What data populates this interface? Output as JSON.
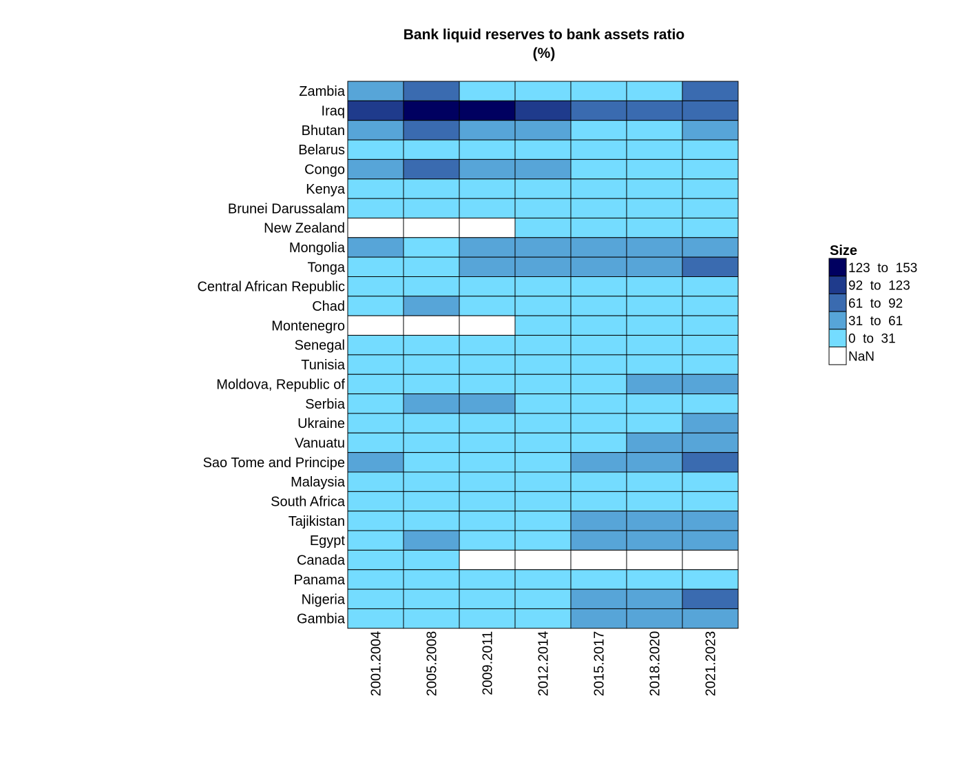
{
  "chart_data": {
    "type": "heatmap",
    "title": "Bank liquid reserves to bank assets ratio",
    "subtitle": "(%)",
    "x_categories": [
      "2001.2004",
      "2005.2008",
      "2009.2011",
      "2012.2014",
      "2015.2017",
      "2018.2020",
      "2021.2023"
    ],
    "y_categories": [
      "Zambia",
      "Iraq",
      "Bhutan",
      "Belarus",
      "Congo",
      "Kenya",
      "Brunei Darussalam",
      "New Zealand",
      "Mongolia",
      "Tonga",
      "Central African Republic",
      "Chad",
      "Montenegro",
      "Senegal",
      "Tunisia",
      "Moldova, Republic of",
      "Serbia",
      "Ukraine",
      "Vanuatu",
      "Sao Tome and Principe",
      "Malaysia",
      "South Africa",
      "Tajikistan",
      "Egypt",
      "Canada",
      "Panama",
      "Nigeria",
      "Gambia"
    ],
    "bins": [
      {
        "label": "123  to  153",
        "color": "#000060"
      },
      {
        "label": "92  to  123",
        "color": "#1f3b8c"
      },
      {
        "label": "61  to  92",
        "color": "#3a6bb0"
      },
      {
        "label": "31  to  61",
        "color": "#57a5d8"
      },
      {
        "label": "0  to  31",
        "color": "#74dcff"
      },
      {
        "label": "NaN",
        "color": "#ffffff"
      }
    ],
    "value_bins": [
      [
        3,
        2,
        4,
        4,
        4,
        4,
        2
      ],
      [
        1,
        0,
        0,
        1,
        2,
        2,
        2
      ],
      [
        3,
        2,
        3,
        3,
        4,
        4,
        3
      ],
      [
        4,
        4,
        4,
        4,
        4,
        4,
        4
      ],
      [
        3,
        2,
        3,
        3,
        4,
        4,
        4
      ],
      [
        4,
        4,
        4,
        4,
        4,
        4,
        4
      ],
      [
        4,
        4,
        4,
        4,
        4,
        4,
        4
      ],
      [
        5,
        5,
        5,
        4,
        4,
        4,
        4
      ],
      [
        3,
        4,
        3,
        3,
        3,
        3,
        3
      ],
      [
        4,
        4,
        3,
        3,
        3,
        3,
        2
      ],
      [
        4,
        4,
        4,
        4,
        4,
        4,
        4
      ],
      [
        4,
        3,
        4,
        4,
        4,
        4,
        4
      ],
      [
        5,
        5,
        5,
        4,
        4,
        4,
        4
      ],
      [
        4,
        4,
        4,
        4,
        4,
        4,
        4
      ],
      [
        4,
        4,
        4,
        4,
        4,
        4,
        4
      ],
      [
        4,
        4,
        4,
        4,
        4,
        3,
        3
      ],
      [
        4,
        3,
        3,
        4,
        4,
        4,
        4
      ],
      [
        4,
        4,
        4,
        4,
        4,
        4,
        3
      ],
      [
        4,
        4,
        4,
        4,
        4,
        3,
        3
      ],
      [
        3,
        4,
        4,
        4,
        3,
        3,
        2
      ],
      [
        4,
        4,
        4,
        4,
        4,
        4,
        4
      ],
      [
        4,
        4,
        4,
        4,
        4,
        4,
        4
      ],
      [
        4,
        4,
        4,
        4,
        3,
        3,
        3
      ],
      [
        4,
        3,
        4,
        4,
        3,
        3,
        3
      ],
      [
        4,
        4,
        5,
        5,
        5,
        5,
        5
      ],
      [
        4,
        4,
        4,
        4,
        4,
        4,
        4
      ],
      [
        4,
        4,
        4,
        4,
        3,
        3,
        2
      ],
      [
        4,
        4,
        4,
        4,
        3,
        3,
        3
      ]
    ],
    "legend_title": "Size",
    "legend_position": "right",
    "grid": false
  }
}
